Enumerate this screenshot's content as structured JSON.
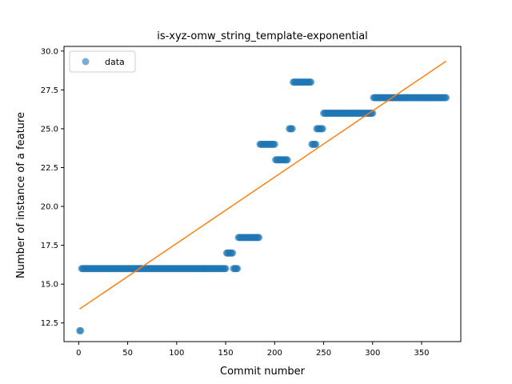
{
  "chart_data": {
    "type": "scatter",
    "title": "is-xyz-omw_string_template-exponential",
    "xlabel": "Commit number",
    "ylabel": "Number of instance of a feature",
    "xlim": [
      -15,
      390
    ],
    "ylim": [
      11.3,
      30.3
    ],
    "xticks": [
      0,
      50,
      100,
      150,
      200,
      250,
      300,
      350
    ],
    "yticks": [
      12.5,
      15.0,
      17.5,
      20.0,
      22.5,
      25.0,
      27.5,
      30.0
    ],
    "ytick_labels": [
      "12.5",
      "15.0",
      "17.5",
      "20.0",
      "22.5",
      "25.0",
      "27.5",
      "30.0"
    ],
    "legend": {
      "entries": [
        "data"
      ],
      "position": "upper-left"
    },
    "colors": {
      "data": "#1f77b4",
      "fit": "#ff7f0e"
    },
    "segments": [
      {
        "x_start": 1,
        "x_end": 2,
        "y": 12
      },
      {
        "x_start": 3,
        "x_end": 150,
        "y": 16
      },
      {
        "x_start": 151,
        "x_end": 157,
        "y": 17
      },
      {
        "x_start": 158,
        "x_end": 162,
        "y": 16
      },
      {
        "x_start": 163,
        "x_end": 184,
        "y": 18
      },
      {
        "x_start": 185,
        "x_end": 200,
        "y": 24
      },
      {
        "x_start": 201,
        "x_end": 213,
        "y": 23
      },
      {
        "x_start": 215,
        "x_end": 218,
        "y": 25
      },
      {
        "x_start": 219,
        "x_end": 237,
        "y": 28
      },
      {
        "x_start": 238,
        "x_end": 242,
        "y": 24
      },
      {
        "x_start": 243,
        "x_end": 249,
        "y": 25
      },
      {
        "x_start": 250,
        "x_end": 300,
        "y": 26
      },
      {
        "x_start": 301,
        "x_end": 375,
        "y": 27
      }
    ],
    "fit_line": {
      "x": [
        1,
        375
      ],
      "y": [
        13.4,
        29.35
      ]
    }
  }
}
